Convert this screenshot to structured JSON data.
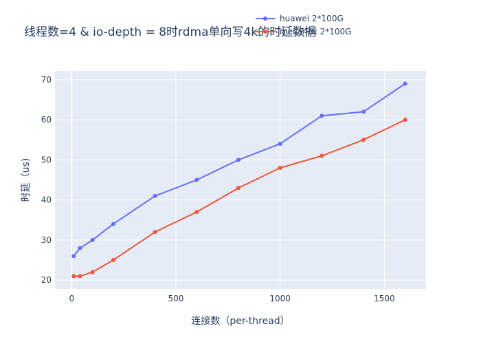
{
  "chart_data": {
    "type": "line",
    "title": "线程数=4 & io-depth = 8时rdma单向写4k的时延数据",
    "xlabel": "连接数（per-thread）",
    "ylabel": "时延（us)",
    "xlim": [
      -80,
      1700
    ],
    "ylim": [
      17.8,
      72.2
    ],
    "xticks": [
      0,
      500,
      1000,
      1500
    ],
    "yticks": [
      20,
      30,
      40,
      50,
      60,
      70
    ],
    "grid": true,
    "legend_position": "top-right",
    "series": [
      {
        "name": "huawei 2*100G",
        "color": "#636efa",
        "x": [
          10,
          40,
          100,
          200,
          400,
          600,
          800,
          1000,
          1200,
          1400,
          1600
        ],
        "y": [
          26,
          28,
          30,
          34,
          41,
          45,
          50,
          54,
          61,
          62,
          69
        ]
      },
      {
        "name": "mellanox 2*100G",
        "color": "#ef553b",
        "x": [
          10,
          40,
          100,
          200,
          400,
          600,
          800,
          1000,
          1200,
          1400,
          1600
        ],
        "y": [
          21,
          21,
          22,
          25,
          32,
          37,
          43,
          48,
          51,
          55,
          60
        ]
      }
    ]
  }
}
